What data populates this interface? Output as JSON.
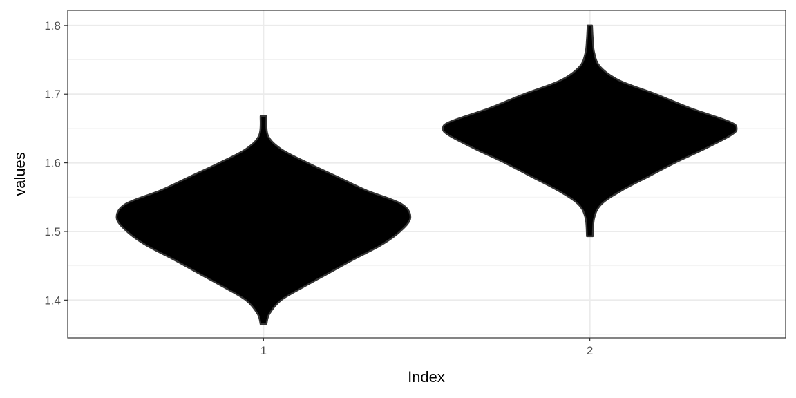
{
  "chart_data": {
    "type": "violin",
    "xlabel": "Index",
    "ylabel": "values",
    "categories": [
      "1",
      "2"
    ],
    "ylim": [
      1.345,
      1.822
    ],
    "yticks": [
      1.4,
      1.5,
      1.6,
      1.7,
      1.8
    ],
    "ytick_labels": [
      "1.4",
      "1.5",
      "1.6",
      "1.7",
      "1.8"
    ],
    "grid": true,
    "fill_color": "#000000",
    "outline_color": "#333333",
    "series": [
      {
        "category": "1",
        "min": 1.365,
        "max": 1.668,
        "density_profile": [
          [
            1.365,
            0.02
          ],
          [
            1.38,
            0.04
          ],
          [
            1.4,
            0.12
          ],
          [
            1.42,
            0.28
          ],
          [
            1.44,
            0.45
          ],
          [
            1.46,
            0.62
          ],
          [
            1.48,
            0.8
          ],
          [
            1.5,
            0.93
          ],
          [
            1.52,
            1.0
          ],
          [
            1.54,
            0.94
          ],
          [
            1.56,
            0.7
          ],
          [
            1.58,
            0.5
          ],
          [
            1.6,
            0.3
          ],
          [
            1.62,
            0.12
          ],
          [
            1.64,
            0.03
          ],
          [
            1.668,
            0.02
          ]
        ]
      },
      {
        "category": "2",
        "min": 1.493,
        "max": 1.8,
        "density_profile": [
          [
            1.493,
            0.02
          ],
          [
            1.52,
            0.03
          ],
          [
            1.54,
            0.08
          ],
          [
            1.56,
            0.22
          ],
          [
            1.58,
            0.4
          ],
          [
            1.6,
            0.58
          ],
          [
            1.62,
            0.78
          ],
          [
            1.64,
            0.96
          ],
          [
            1.65,
            1.0
          ],
          [
            1.66,
            0.95
          ],
          [
            1.68,
            0.68
          ],
          [
            1.7,
            0.45
          ],
          [
            1.72,
            0.2
          ],
          [
            1.74,
            0.07
          ],
          [
            1.76,
            0.03
          ],
          [
            1.78,
            0.02
          ],
          [
            1.8,
            0.015
          ]
        ]
      }
    ]
  }
}
